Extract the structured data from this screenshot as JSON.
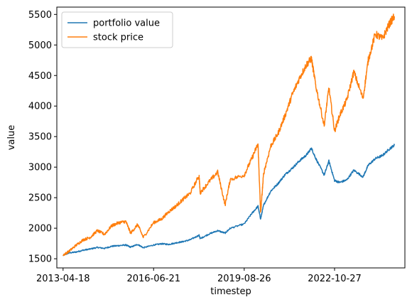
{
  "chart_data": {
    "type": "line",
    "xlabel": "timestep",
    "ylabel": "value",
    "x_tick_labels": [
      "2013-04-18",
      "2016-06-21",
      "2019-08-26",
      "2022-10-27"
    ],
    "x_ticks": [
      "2013-04-18",
      "2016-06-21",
      "2019-08-26",
      "2022-10-27"
    ],
    "xlim": [
      "2013-01-28",
      "2025-04-15"
    ],
    "ylim": [
      1350,
      5620
    ],
    "y_ticks": [
      1500,
      2000,
      2500,
      3000,
      3500,
      4000,
      4500,
      5000,
      5500
    ],
    "grid": false,
    "legend_position": "top-left",
    "series": [
      {
        "name": "portfolio value",
        "color": "#1f77b4",
        "points": [
          [
            "2013-04-18",
            1555
          ],
          [
            "2013-07-01",
            1595
          ],
          [
            "2013-10-01",
            1610
          ],
          [
            "2014-01-01",
            1640
          ],
          [
            "2014-04-01",
            1660
          ],
          [
            "2014-07-01",
            1685
          ],
          [
            "2014-10-01",
            1670
          ],
          [
            "2015-01-01",
            1705
          ],
          [
            "2015-04-01",
            1715
          ],
          [
            "2015-07-01",
            1725
          ],
          [
            "2015-09-01",
            1690
          ],
          [
            "2015-12-01",
            1735
          ],
          [
            "2016-02-10",
            1680
          ],
          [
            "2016-06-21",
            1725
          ],
          [
            "2016-10-01",
            1745
          ],
          [
            "2017-01-01",
            1735
          ],
          [
            "2017-04-01",
            1760
          ],
          [
            "2017-07-01",
            1780
          ],
          [
            "2017-10-01",
            1810
          ],
          [
            "2018-01-25",
            1885
          ],
          [
            "2018-02-08",
            1830
          ],
          [
            "2018-06-01",
            1905
          ],
          [
            "2018-09-20",
            1960
          ],
          [
            "2018-12-24",
            1920
          ],
          [
            "2019-03-01",
            2000
          ],
          [
            "2019-08-26",
            2070
          ],
          [
            "2019-12-01",
            2240
          ],
          [
            "2020-02-19",
            2360
          ],
          [
            "2020-03-23",
            2150
          ],
          [
            "2020-05-01",
            2380
          ],
          [
            "2020-08-01",
            2610
          ],
          [
            "2020-11-01",
            2730
          ],
          [
            "2021-02-01",
            2880
          ],
          [
            "2021-05-01",
            2980
          ],
          [
            "2021-08-01",
            3100
          ],
          [
            "2021-11-01",
            3200
          ],
          [
            "2022-01-03",
            3310
          ],
          [
            "2022-03-01",
            3140
          ],
          [
            "2022-06-16",
            2870
          ],
          [
            "2022-08-15",
            3100
          ],
          [
            "2022-10-27",
            2780
          ],
          [
            "2023-01-01",
            2750
          ],
          [
            "2023-04-01",
            2790
          ],
          [
            "2023-07-01",
            2950
          ],
          [
            "2023-10-27",
            2840
          ],
          [
            "2024-01-01",
            3030
          ],
          [
            "2024-04-01",
            3140
          ],
          [
            "2024-07-01",
            3190
          ],
          [
            "2024-10-01",
            3300
          ],
          [
            "2024-12-01",
            3360
          ]
        ]
      },
      {
        "name": "stock price",
        "color": "#ff7f0e",
        "points": [
          [
            "2013-04-18",
            1560
          ],
          [
            "2013-07-01",
            1620
          ],
          [
            "2013-10-01",
            1720
          ],
          [
            "2014-01-01",
            1810
          ],
          [
            "2014-04-01",
            1850
          ],
          [
            "2014-07-01",
            1960
          ],
          [
            "2014-10-01",
            1900
          ],
          [
            "2015-01-01",
            2040
          ],
          [
            "2015-04-01",
            2090
          ],
          [
            "2015-07-01",
            2110
          ],
          [
            "2015-09-01",
            1920
          ],
          [
            "2015-12-01",
            2060
          ],
          [
            "2016-02-10",
            1850
          ],
          [
            "2016-06-21",
            2090
          ],
          [
            "2016-10-01",
            2150
          ],
          [
            "2017-01-01",
            2270
          ],
          [
            "2017-04-01",
            2360
          ],
          [
            "2017-07-01",
            2470
          ],
          [
            "2017-10-01",
            2570
          ],
          [
            "2018-01-25",
            2860
          ],
          [
            "2018-02-08",
            2580
          ],
          [
            "2018-06-01",
            2760
          ],
          [
            "2018-09-20",
            2920
          ],
          [
            "2018-12-24",
            2380
          ],
          [
            "2019-03-01",
            2800
          ],
          [
            "2019-08-26",
            2870
          ],
          [
            "2019-12-01",
            3140
          ],
          [
            "2020-02-19",
            3380
          ],
          [
            "2020-03-23",
            2240
          ],
          [
            "2020-05-01",
            2900
          ],
          [
            "2020-08-01",
            3350
          ],
          [
            "2020-11-01",
            3550
          ],
          [
            "2021-02-01",
            3850
          ],
          [
            "2021-05-01",
            4180
          ],
          [
            "2021-08-01",
            4450
          ],
          [
            "2021-11-01",
            4680
          ],
          [
            "2022-01-03",
            4780
          ],
          [
            "2022-03-01",
            4330
          ],
          [
            "2022-06-16",
            3680
          ],
          [
            "2022-08-15",
            4300
          ],
          [
            "2022-10-27",
            3590
          ],
          [
            "2023-01-01",
            3850
          ],
          [
            "2023-04-01",
            4100
          ],
          [
            "2023-07-01",
            4560
          ],
          [
            "2023-10-27",
            4120
          ],
          [
            "2024-01-01",
            4750
          ],
          [
            "2024-04-01",
            5180
          ],
          [
            "2024-07-01",
            5100
          ],
          [
            "2024-10-01",
            5350
          ],
          [
            "2024-12-01",
            5470
          ]
        ]
      }
    ]
  }
}
